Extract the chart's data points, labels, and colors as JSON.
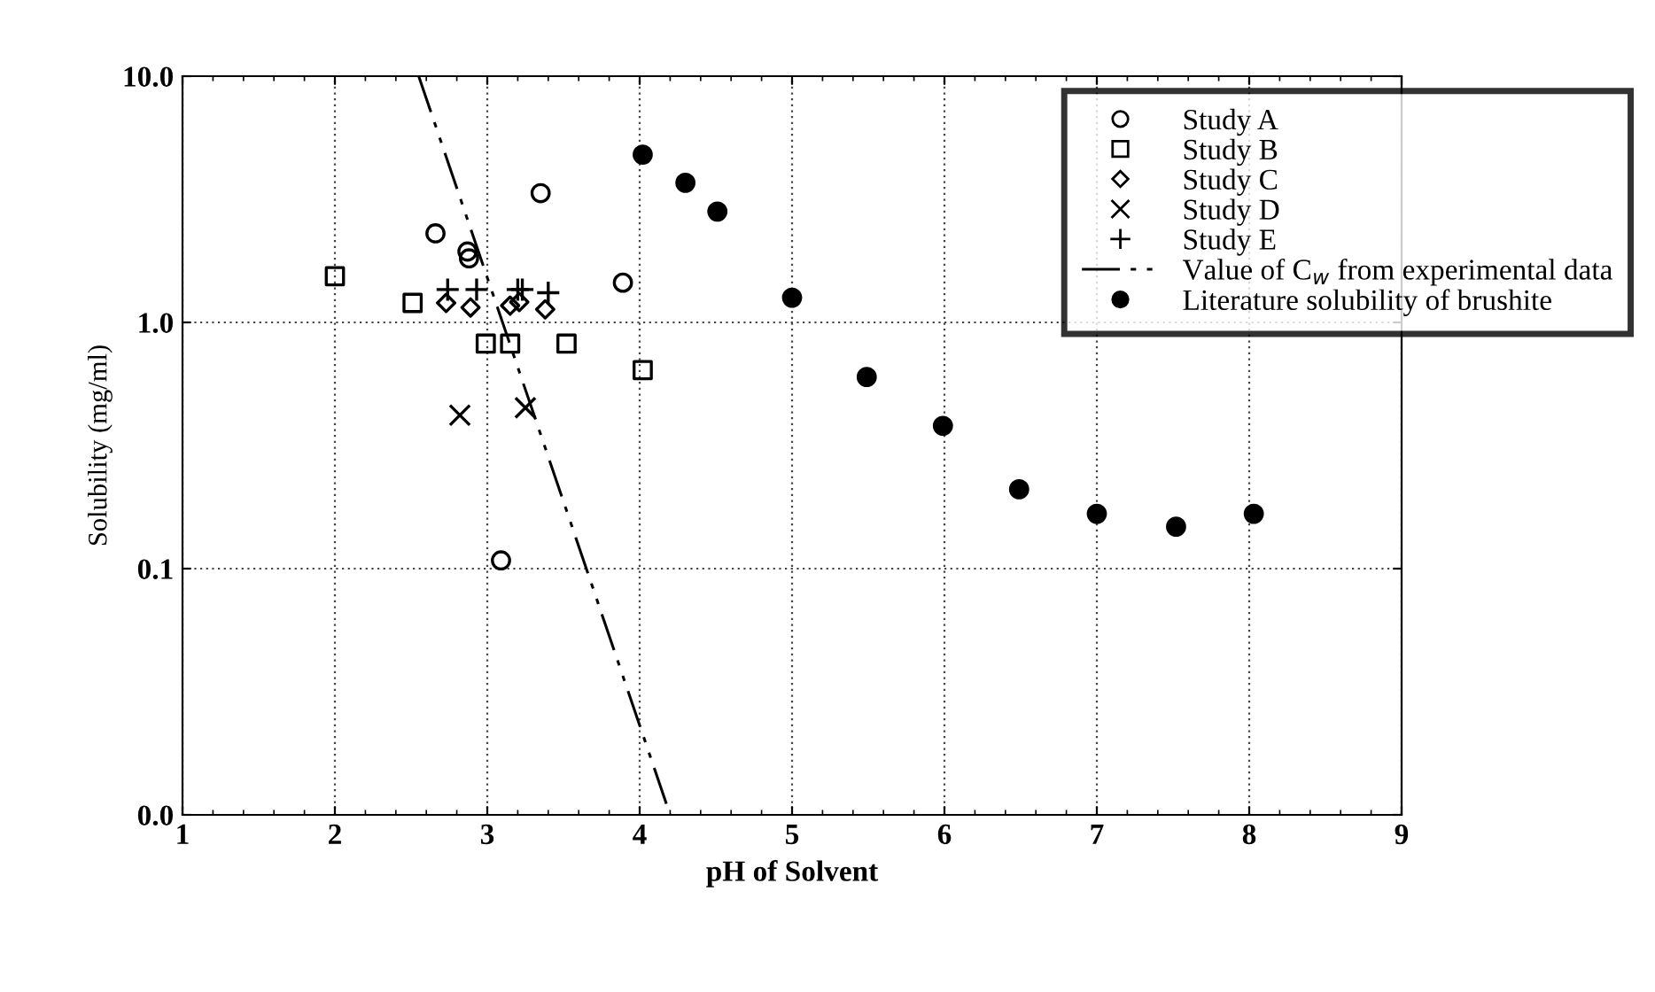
{
  "chart_data": {
    "type": "scatter",
    "xlabel": "pH of Solvent",
    "ylabel": "Solubility (mg/ml)",
    "xlim": [
      1,
      9
    ],
    "xticks": [
      1,
      2,
      3,
      4,
      5,
      6,
      7,
      8,
      9
    ],
    "ylim": [
      0.01,
      10
    ],
    "yticks": [
      {
        "value": 0.01,
        "label": "0.0"
      },
      {
        "value": 0.1,
        "label": "0.1"
      },
      {
        "value": 1,
        "label": "1.0"
      },
      {
        "value": 10,
        "label": "10.0"
      }
    ],
    "log": "y",
    "grid": true,
    "legend": "top right",
    "series": [
      {
        "name": "Study A",
        "marker": "circle_open",
        "color": "#000000",
        "x": [
          2.66,
          2.87,
          2.88,
          3.35,
          3.89,
          3.09
        ],
        "values": [
          2.3,
          1.94,
          1.82,
          3.35,
          1.45,
          0.108
        ]
      },
      {
        "name": "Study B",
        "marker": "square",
        "color": "#000000",
        "x": [
          2.0,
          2.51,
          2.99,
          3.15,
          3.52,
          4.02
        ],
        "values": [
          1.54,
          1.2,
          0.82,
          0.82,
          0.82,
          0.64
        ]
      },
      {
        "name": "Study C",
        "marker": "diamond",
        "color": "#000000",
        "x": [
          2.73,
          2.89,
          3.15,
          3.21,
          3.38
        ],
        "values": [
          1.2,
          1.15,
          1.17,
          1.21,
          1.13
        ]
      },
      {
        "name": "Study D",
        "marker": "x",
        "color": "#000000",
        "x": [
          2.82,
          3.25
        ],
        "values": [
          0.42,
          0.45
        ]
      },
      {
        "name": "Study E",
        "marker": "cross",
        "color": "#000000",
        "x": [
          2.74,
          2.93,
          3.2,
          3.23,
          3.4
        ],
        "values": [
          1.36,
          1.36,
          1.36,
          1.36,
          1.32
        ]
      },
      {
        "name": "Value of C$_{w}$ from experimental data",
        "type": "line",
        "line_style": "dashdot",
        "marker": "none",
        "color": "#000000",
        "x": [
          2.55,
          4.2
        ],
        "values": [
          10,
          0.01
        ]
      },
      {
        "name": "Literature solubility of brushite",
        "marker": "circle",
        "color": "#000000",
        "x": [
          4.02,
          4.3,
          4.51,
          5.0,
          5.49,
          5.99,
          6.49,
          7.0,
          7.52,
          8.03
        ],
        "values": [
          4.8,
          3.69,
          2.82,
          1.26,
          0.6,
          0.38,
          0.21,
          0.167,
          0.148,
          0.167
        ]
      }
    ]
  }
}
